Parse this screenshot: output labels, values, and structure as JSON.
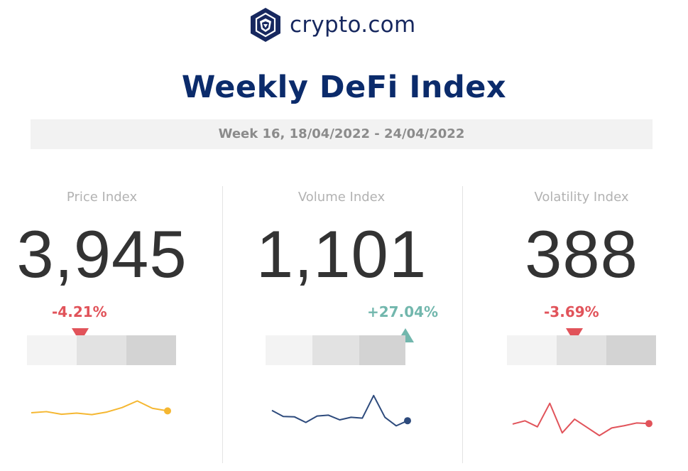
{
  "brand": {
    "name": "crypto.com",
    "logo_icon": "crypto-com-lion-shield-icon",
    "color": "#17285f"
  },
  "title": "Weekly DeFi Index",
  "week_range": "Week 16, 18/04/2022 - 24/04/2022",
  "indices": [
    {
      "label": "Price Index",
      "value": "3,945",
      "change": "-4.21%",
      "direction": "down",
      "gauge_position": 0.36,
      "spark_color": "#f5b731",
      "trend": [
        50,
        53,
        46,
        49,
        45,
        52,
        64,
        82,
        62,
        55
      ]
    },
    {
      "label": "Volume Index",
      "value": "1,101",
      "change": "+27.04%",
      "direction": "up",
      "gauge_position": 1.0,
      "spark_color": "#2d4a7c",
      "trend": [
        62,
        48,
        47,
        34,
        49,
        51,
        40,
        46,
        44,
        97,
        46,
        26,
        38
      ]
    },
    {
      "label": "Volatility Index",
      "value": "388",
      "change": "-3.69%",
      "direction": "down",
      "gauge_position": 0.45,
      "spark_color": "#e1535a",
      "trend": [
        52,
        58,
        47,
        90,
        36,
        61,
        46,
        31,
        45,
        49,
        54,
        53
      ]
    }
  ],
  "colors": {
    "negative": "#e1535a",
    "positive": "#72b7ad",
    "title": "#0b2b6b"
  }
}
